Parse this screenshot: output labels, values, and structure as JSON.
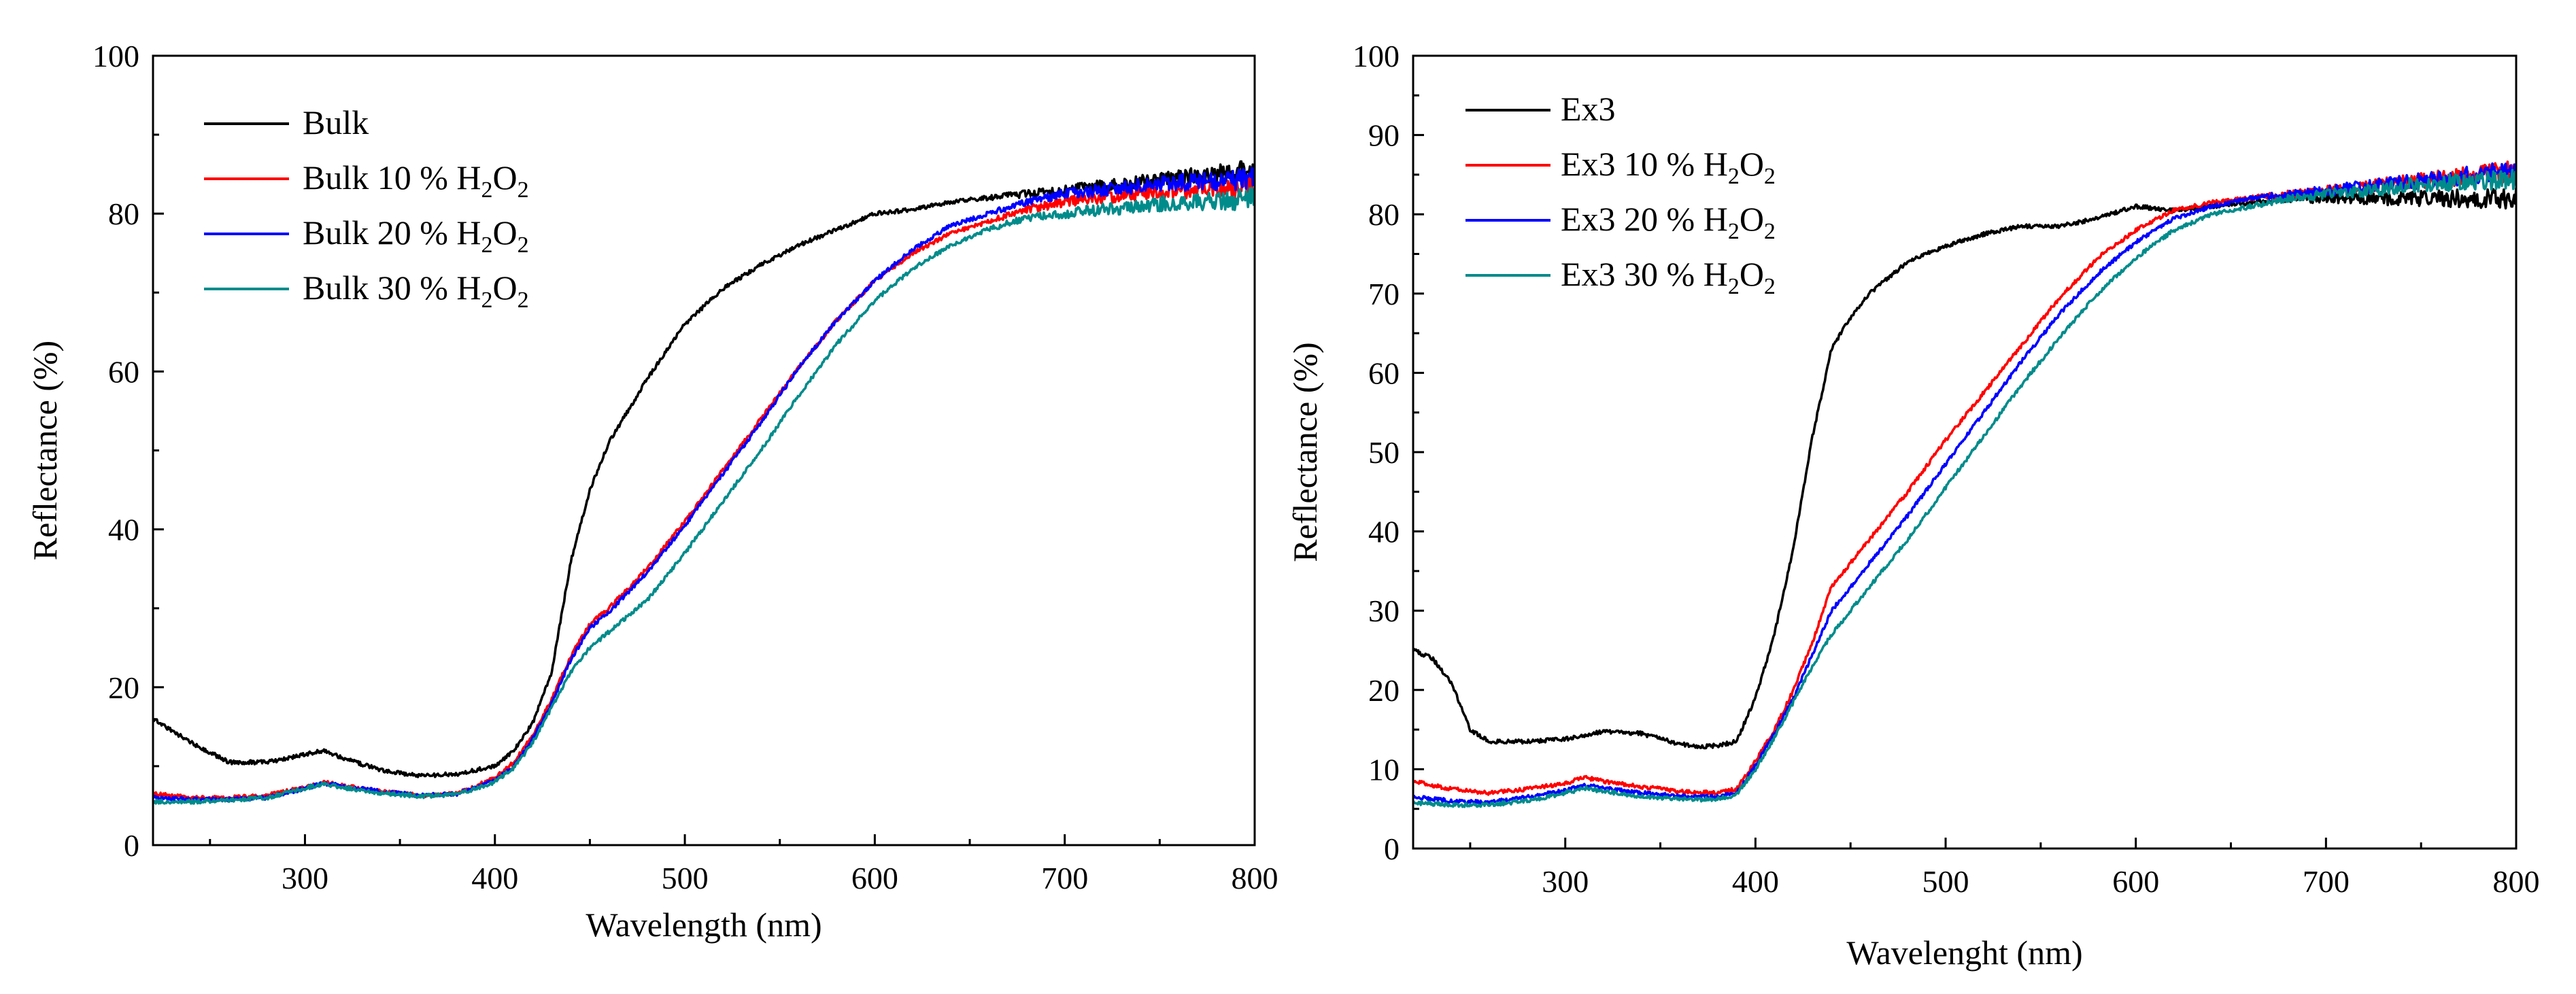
{
  "chart_data": [
    {
      "type": "line",
      "title": "",
      "xlabel": "Wavelength (nm)",
      "ylabel": "Reflectance (%)",
      "xlim": [
        220,
        800
      ],
      "ylim": [
        0,
        100
      ],
      "xticks": [
        300,
        400,
        500,
        600,
        700,
        800
      ],
      "yticks": [
        0,
        20,
        40,
        60,
        80,
        100
      ],
      "grid": false,
      "legend_position": "top-left",
      "series": [
        {
          "name": "Bulk",
          "label_base": "Bulk",
          "label_suffix": "",
          "color": "#000000",
          "x": [
            220,
            240,
            260,
            280,
            300,
            310,
            320,
            340,
            360,
            380,
            400,
            410,
            420,
            430,
            440,
            450,
            460,
            480,
            500,
            520,
            540,
            560,
            580,
            600,
            620,
            640,
            660,
            680,
            700,
            720,
            740,
            760,
            780,
            800
          ],
          "y": [
            16,
            13,
            10.5,
            10.5,
            11.5,
            12,
            11,
            9.5,
            8.8,
            9,
            10,
            12,
            15.5,
            22,
            36,
            45,
            51,
            59,
            66,
            70.5,
            73.5,
            76,
            78,
            80,
            80.5,
            81.5,
            82,
            82.5,
            83,
            83.5,
            84,
            84.5,
            85,
            85.5
          ]
        },
        {
          "name": "Bulk 10 % H2O2",
          "label_base": "Bulk 10 % H",
          "label_suffix": "O",
          "color": "#ff0000",
          "x": [
            220,
            240,
            260,
            280,
            300,
            310,
            320,
            340,
            360,
            380,
            400,
            410,
            420,
            430,
            440,
            450,
            460,
            480,
            500,
            520,
            540,
            560,
            580,
            600,
            620,
            640,
            660,
            680,
            700,
            720,
            740,
            760,
            780,
            800
          ],
          "y": [
            6.5,
            6,
            6,
            6.3,
            7.3,
            8,
            7.5,
            6.8,
            6.3,
            6.5,
            8.5,
            10.5,
            14,
            18.5,
            24,
            28,
            30,
            35,
            41,
            47.5,
            54,
            60.5,
            66.5,
            71.5,
            75,
            77.5,
            79,
            80.5,
            81.5,
            82,
            82.5,
            83,
            83,
            83.5
          ]
        },
        {
          "name": "Bulk 20 % H2O2",
          "label_base": "Bulk 20 % H",
          "label_suffix": "O",
          "color": "#0000ff",
          "x": [
            220,
            240,
            260,
            280,
            300,
            310,
            320,
            340,
            360,
            380,
            400,
            410,
            420,
            430,
            440,
            450,
            460,
            480,
            500,
            520,
            540,
            560,
            580,
            600,
            620,
            640,
            660,
            680,
            700,
            720,
            740,
            760,
            780,
            800
          ],
          "y": [
            6,
            5.8,
            5.8,
            6,
            7.2,
            7.8,
            7.5,
            6.8,
            6.3,
            6.5,
            8.2,
            10,
            13.5,
            18,
            23.5,
            27.5,
            29.5,
            34.5,
            40.5,
            47,
            53.5,
            60.5,
            66.5,
            71.5,
            75.5,
            78.5,
            80,
            81.5,
            82.5,
            83,
            83.5,
            84,
            84,
            84.5
          ]
        },
        {
          "name": "Bulk 30 % H2O2",
          "label_base": "Bulk 30 % H",
          "label_suffix": "O",
          "color": "#008b8b",
          "x": [
            220,
            240,
            260,
            280,
            300,
            310,
            320,
            340,
            360,
            380,
            400,
            410,
            420,
            430,
            440,
            450,
            460,
            480,
            500,
            520,
            540,
            560,
            580,
            600,
            620,
            640,
            660,
            680,
            700,
            720,
            740,
            760,
            780,
            800
          ],
          "y": [
            5.5,
            5.5,
            5.7,
            6,
            7.2,
            7.8,
            7.3,
            6.6,
            6.2,
            6.4,
            8,
            9.8,
            13,
            17.5,
            22,
            25,
            27,
            31,
            37,
            43.5,
            50,
            57,
            63.5,
            69,
            73,
            76,
            78,
            79.5,
            80,
            80.5,
            81,
            81.5,
            81.5,
            82
          ]
        }
      ]
    },
    {
      "type": "line",
      "title": "",
      "xlabel": "Wavelenght (nm)",
      "ylabel": "Reflectance (%)",
      "xlim": [
        220,
        800
      ],
      "ylim": [
        0,
        100
      ],
      "xticks": [
        300,
        400,
        500,
        600,
        700,
        800
      ],
      "yticks": [
        0,
        10,
        20,
        30,
        40,
        50,
        60,
        70,
        80,
        90,
        100
      ],
      "grid": false,
      "legend_position": "top-left",
      "series": [
        {
          "name": "Ex3",
          "label_base": "Ex3",
          "label_suffix": "",
          "color": "#000000",
          "x": [
            220,
            230,
            240,
            250,
            260,
            280,
            300,
            320,
            340,
            360,
            370,
            380,
            390,
            400,
            410,
            420,
            430,
            440,
            450,
            460,
            480,
            500,
            520,
            540,
            560,
            580,
            600,
            620,
            640,
            660,
            680,
            700,
            720,
            740,
            760,
            780,
            800
          ],
          "y": [
            25,
            24,
            21,
            15,
            13.5,
            13.5,
            13.8,
            14.8,
            14.5,
            13.2,
            12.8,
            13,
            13.5,
            19,
            27,
            38,
            52,
            63,
            67,
            70,
            74,
            76,
            77.5,
            78.5,
            78.5,
            79.5,
            81,
            80.5,
            81,
            81.5,
            82,
            82,
            82,
            82,
            82,
            82,
            82
          ]
        },
        {
          "name": "Ex3 10 % H2O2",
          "label_base": "Ex3 10 % H",
          "label_suffix": "O",
          "color": "#ff0000",
          "x": [
            220,
            240,
            260,
            280,
            300,
            310,
            320,
            340,
            360,
            380,
            390,
            400,
            410,
            420,
            430,
            440,
            460,
            480,
            500,
            520,
            540,
            560,
            580,
            600,
            620,
            640,
            660,
            680,
            700,
            720,
            740,
            760,
            780,
            800
          ],
          "y": [
            8.5,
            7.5,
            7,
            7.5,
            8.2,
            9,
            8.5,
            7.8,
            7.2,
            7,
            7.5,
            11,
            15,
            20,
            26,
            33,
            39,
            45,
            51.5,
            57.5,
            63.5,
            69.5,
            74.5,
            78,
            80.5,
            81.5,
            82,
            82.5,
            83,
            83.5,
            84,
            84.5,
            85,
            85.5
          ]
        },
        {
          "name": "Ex3 20 % H2O2",
          "label_base": "Ex3 20 % H",
          "label_suffix": "O",
          "color": "#0000ff",
          "x": [
            220,
            240,
            260,
            280,
            300,
            310,
            320,
            340,
            360,
            380,
            390,
            400,
            410,
            420,
            430,
            440,
            460,
            480,
            500,
            520,
            540,
            560,
            580,
            600,
            620,
            640,
            660,
            680,
            700,
            720,
            740,
            760,
            780,
            800
          ],
          "y": [
            6.5,
            6,
            5.8,
            6.5,
            7.3,
            8,
            7.6,
            7,
            6.6,
            6.5,
            7,
            10.5,
            14.5,
            19,
            24.5,
            30,
            36,
            42,
            48.5,
            55,
            61.5,
            67.5,
            72.5,
            76.5,
            79.5,
            81,
            82,
            82.5,
            83,
            83.5,
            84,
            84.5,
            85,
            85.5
          ]
        },
        {
          "name": "Ex3 30 % H2O2",
          "label_base": "Ex3 30 % H",
          "label_suffix": "O",
          "color": "#008b8b",
          "x": [
            220,
            240,
            260,
            280,
            300,
            310,
            320,
            340,
            360,
            380,
            390,
            400,
            410,
            420,
            430,
            440,
            460,
            480,
            500,
            520,
            540,
            560,
            580,
            600,
            620,
            640,
            660,
            680,
            700,
            720,
            740,
            760,
            780,
            800
          ],
          "y": [
            5.8,
            5.5,
            5.5,
            6,
            7,
            7.6,
            7.2,
            6.6,
            6.2,
            6.2,
            6.8,
            10,
            14,
            18.5,
            23,
            27,
            33,
            39,
            45.5,
            52,
            58.5,
            64.5,
            70,
            74.5,
            78,
            80,
            81,
            82,
            82.5,
            83,
            83.5,
            84,
            84,
            84.5
          ]
        }
      ]
    }
  ]
}
